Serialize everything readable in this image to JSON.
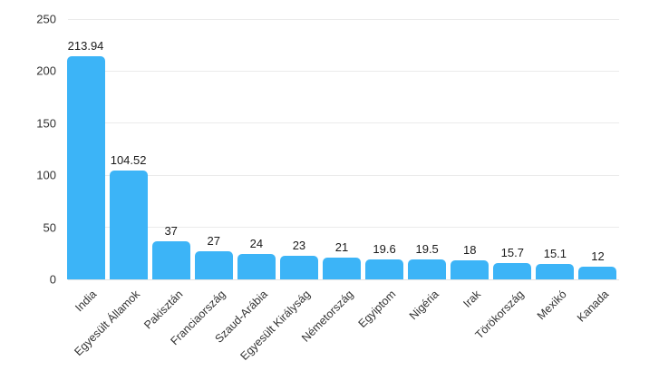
{
  "chart_data": {
    "type": "bar",
    "title": "",
    "xlabel": "",
    "ylabel": "",
    "categories": [
      "India",
      "Egyesült Államok",
      "Pakisztán",
      "Franciaország",
      "Szaud-Arábia",
      "Egyesült Királyság",
      "Németország",
      "Egyiptom",
      "Nigéria",
      "Irak",
      "Törökország",
      "Mexikó",
      "Kanada"
    ],
    "values": [
      213.94,
      104.52,
      37,
      27,
      24,
      23,
      21,
      19.6,
      19.5,
      18,
      15.7,
      15.1,
      12
    ],
    "value_labels": [
      "213.94",
      "104.52",
      "37",
      "27",
      "24",
      "23",
      "21",
      "19.6",
      "19.5",
      "18",
      "15.7",
      "15.1",
      "12"
    ],
    "ylim": [
      0,
      250
    ],
    "yticks": [
      0,
      50,
      100,
      150,
      200,
      250
    ],
    "grid": true,
    "legend": "none",
    "colors": {
      "bar": "#3CB4F7",
      "gridline": "#ebebeb",
      "axis_label": "#333333",
      "value_label": "#1a1a1a",
      "background": "#ffffff"
    }
  }
}
